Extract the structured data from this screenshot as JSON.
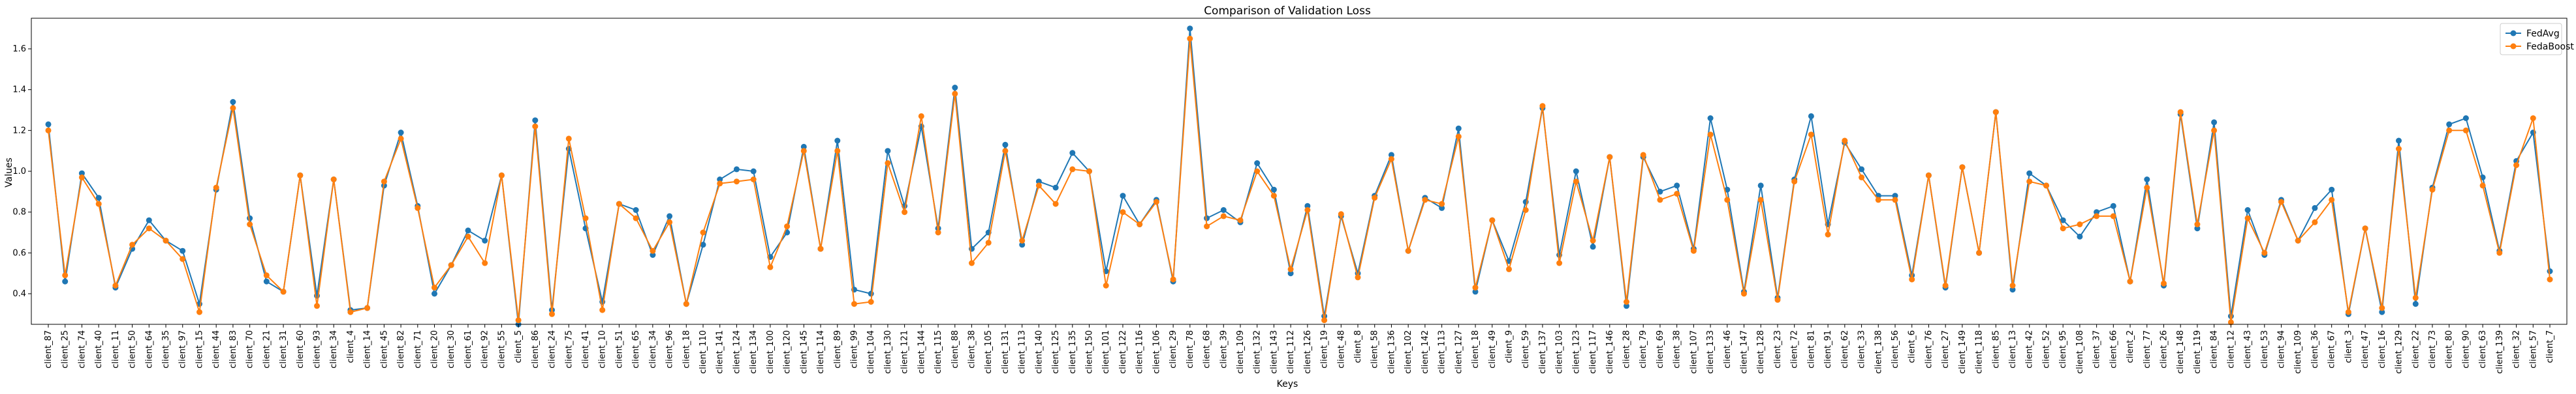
{
  "chart_data": {
    "type": "line",
    "title": "Comparison of Validation Loss",
    "xlabel": "Keys",
    "ylabel": "Values",
    "ylim": [
      0.25,
      1.75
    ],
    "yticks": [
      0.4,
      0.6,
      0.8,
      1.0,
      1.2,
      1.4,
      1.6
    ],
    "ytick_labels": [
      "0.4",
      "0.6",
      "0.8",
      "1.0",
      "1.2",
      "1.4",
      "1.6"
    ],
    "grid": false,
    "legend_position": "top-right",
    "colors": {
      "FedAvg": "#1f77b4",
      "FedaBoost": "#ff7f0e"
    },
    "categories": [
      "client_87",
      "client_25",
      "client_74",
      "client_40",
      "client_11",
      "client_50",
      "client_64",
      "client_35",
      "client_97",
      "client_15",
      "client_44",
      "client_83",
      "client_70",
      "client_21",
      "client_31",
      "client_60",
      "client_93",
      "client_34",
      "client_4",
      "client_14",
      "client_45",
      "client_82",
      "client_71",
      "client_20",
      "client_30",
      "client_61",
      "client_92",
      "client_55",
      "client_5",
      "client_86",
      "client_24",
      "client_75",
      "client_41",
      "client_10",
      "client_51",
      "client_65",
      "client_34",
      "client_96",
      "client_18",
      "client_110",
      "client_141",
      "client_124",
      "client_134",
      "client_100",
      "client_120",
      "client_145",
      "client_114",
      "client_89",
      "client_99",
      "client_104",
      "client_130",
      "client_121",
      "client_144",
      "client_115",
      "client_88",
      "client_38",
      "client_105",
      "client_131",
      "client_113",
      "client_140",
      "client_125",
      "client_135",
      "client_150",
      "client_101",
      "client_122",
      "client_116",
      "client_106",
      "client_29",
      "client_78",
      "client_68",
      "client_39",
      "client_109",
      "client_132",
      "client_143",
      "client_112",
      "client_126",
      "client_19",
      "client_48",
      "client_8",
      "client_58",
      "client_136",
      "client_102",
      "client_142",
      "client_113",
      "client_127",
      "client_18",
      "client_49",
      "client_9",
      "client_59",
      "client_137",
      "client_103",
      "client_123",
      "client_117",
      "client_146",
      "client_28",
      "client_79",
      "client_69",
      "client_38",
      "client_107",
      "client_133",
      "client_46",
      "client_147",
      "client_128",
      "client_23",
      "client_72",
      "client_81",
      "client_91",
      "client_62",
      "client_33",
      "client_138",
      "client_56",
      "client_6",
      "client_76",
      "client_27",
      "client_149",
      "client_118",
      "client_85",
      "client_13",
      "client_42",
      "client_52",
      "client_95",
      "client_108",
      "client_37",
      "client_66",
      "client_2",
      "client_77",
      "client_26",
      "client_148",
      "client_119",
      "client_84",
      "client_12",
      "client_43",
      "client_53",
      "client_94",
      "client_109",
      "client_36",
      "client_67",
      "client_3",
      "client_47",
      "client_16",
      "client_129",
      "client_22",
      "client_73",
      "client_80",
      "client_90",
      "client_63",
      "client_139",
      "client_32",
      "client_57",
      "client_7"
    ],
    "series": [
      {
        "name": "FedAvg",
        "values": [
          1.23,
          0.46,
          0.99,
          0.87,
          0.43,
          0.62,
          0.76,
          0.66,
          0.61,
          0.35,
          0.91,
          1.34,
          0.77,
          0.46,
          0.41,
          0.98,
          0.39,
          0.96,
          0.32,
          0.33,
          0.93,
          1.19,
          0.83,
          0.4,
          0.54,
          0.71,
          0.66,
          0.98,
          0.25,
          1.25,
          0.32,
          1.11,
          0.72,
          0.36,
          0.84,
          0.81,
          0.59,
          0.78,
          0.35,
          0.64,
          0.96,
          1.01,
          1.0,
          0.58,
          0.7,
          1.12,
          0.62,
          1.15,
          0.42,
          0.4,
          1.1,
          0.83,
          1.22,
          0.72,
          1.41,
          0.62,
          0.7,
          1.13,
          0.64,
          0.95,
          0.92,
          1.09,
          1.0,
          0.51,
          0.88,
          0.74,
          0.86,
          0.46,
          1.7,
          0.77,
          0.81,
          0.75,
          1.04,
          0.91,
          0.5,
          0.83,
          0.29,
          0.78,
          0.5,
          0.88,
          1.08,
          0.61,
          0.87,
          0.82,
          1.21,
          0.41,
          0.76,
          0.56,
          0.85,
          1.31,
          0.59,
          1.0,
          0.63,
          1.07,
          0.34,
          1.07,
          0.9,
          0.93,
          0.62,
          1.26,
          0.91,
          0.41,
          0.93,
          0.38,
          0.96,
          1.27,
          0.74,
          1.14,
          1.01,
          0.88,
          0.88,
          0.49,
          0.98,
          0.43,
          1.02,
          0.6,
          1.29,
          0.42,
          0.99,
          0.93,
          0.76,
          0.68,
          0.8,
          0.83,
          0.46,
          0.96,
          0.44,
          1.28,
          0.72,
          1.24,
          0.29,
          0.81,
          0.59,
          0.86,
          0.66,
          0.82,
          0.91,
          0.3,
          0.72,
          0.31,
          1.15,
          0.35,
          0.92,
          1.23,
          1.26,
          0.97,
          0.61,
          1.05,
          1.19,
          0.51
        ]
      },
      {
        "name": "FedaBoost",
        "values": [
          1.2,
          0.49,
          0.97,
          0.84,
          0.44,
          0.64,
          0.72,
          0.66,
          0.57,
          0.31,
          0.92,
          1.31,
          0.74,
          0.49,
          0.41,
          0.98,
          0.34,
          0.96,
          0.31,
          0.33,
          0.95,
          1.16,
          0.82,
          0.43,
          0.54,
          0.68,
          0.55,
          0.98,
          0.27,
          1.22,
          0.3,
          1.16,
          0.77,
          0.32,
          0.84,
          0.77,
          0.61,
          0.75,
          0.35,
          0.7,
          0.94,
          0.95,
          0.96,
          0.53,
          0.73,
          1.1,
          0.62,
          1.1,
          0.35,
          0.36,
          1.04,
          0.8,
          1.27,
          0.7,
          1.38,
          0.55,
          0.65,
          1.1,
          0.66,
          0.93,
          0.84,
          1.01,
          1.0,
          0.44,
          0.8,
          0.74,
          0.85,
          0.47,
          1.65,
          0.73,
          0.78,
          0.76,
          1.0,
          0.88,
          0.52,
          0.81,
          0.27,
          0.79,
          0.48,
          0.87,
          1.06,
          0.61,
          0.86,
          0.84,
          1.17,
          0.43,
          0.76,
          0.52,
          0.81,
          1.32,
          0.55,
          0.95,
          0.66,
          1.07,
          0.36,
          1.08,
          0.86,
          0.89,
          0.61,
          1.18,
          0.86,
          0.4,
          0.86,
          0.37,
          0.95,
          1.18,
          0.69,
          1.15,
          0.97,
          0.86,
          0.86,
          0.47,
          0.98,
          0.44,
          1.02,
          0.6,
          1.29,
          0.44,
          0.95,
          0.93,
          0.72,
          0.74,
          0.78,
          0.78,
          0.46,
          0.92,
          0.45,
          1.29,
          0.74,
          1.2,
          0.26,
          0.77,
          0.6,
          0.85,
          0.66,
          0.75,
          0.86,
          0.31,
          0.72,
          0.33,
          1.11,
          0.38,
          0.91,
          1.2,
          1.2,
          0.93,
          0.6,
          1.03,
          1.26,
          0.47
        ]
      }
    ]
  }
}
